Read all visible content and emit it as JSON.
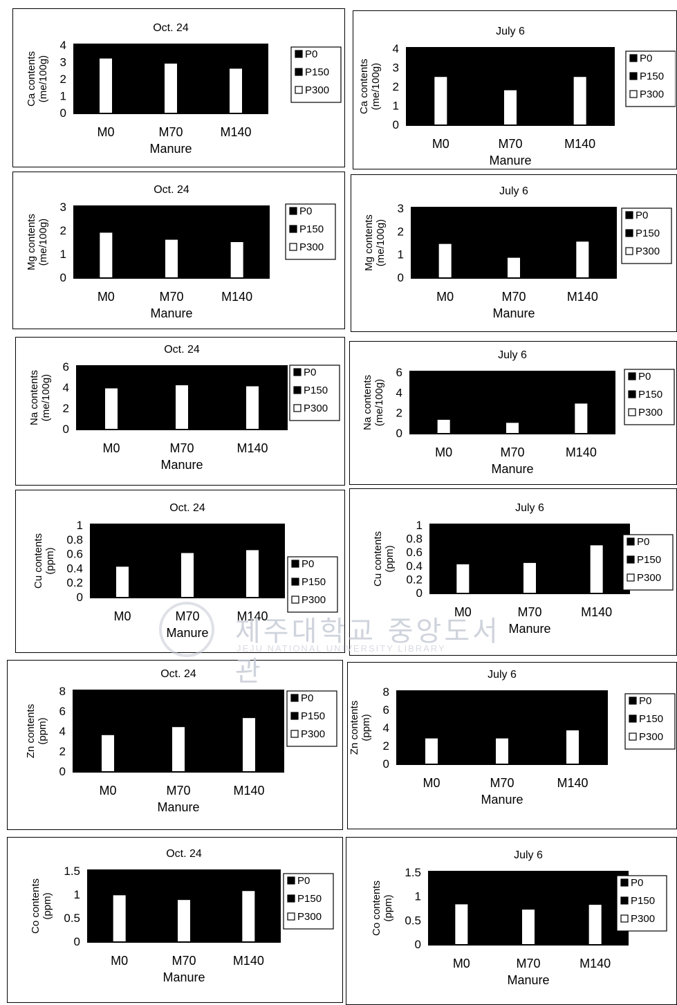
{
  "xlabel": "Manure",
  "categories": [
    "M0",
    "M70",
    "M140"
  ],
  "legend": [
    "P0",
    "P150",
    "P300"
  ],
  "colors": {
    "plot_bg": "#000000",
    "bar": "#ffffff",
    "text": "#000000"
  },
  "watermark": {
    "title": "제주대학교 중앙도서관",
    "subtitle": "JEJU NATIONAL UNIVERSITY LIBRARY"
  },
  "chart_data": [
    {
      "id": "ca-oct",
      "type": "bar",
      "title": "Oct. 24",
      "ylabel": [
        "Ca contents",
        "(me/100g)"
      ],
      "ylim": [
        0,
        4
      ],
      "yticks": [
        "0",
        "1",
        "2",
        "3",
        "4"
      ],
      "xlabel": "Manure",
      "categories": [
        "M0",
        "M70",
        "M140"
      ],
      "series": [
        {
          "name": "P300",
          "values": [
            3.2,
            2.9,
            2.6
          ]
        }
      ]
    },
    {
      "id": "ca-jul",
      "type": "bar",
      "title": "July 6",
      "ylabel": [
        "Ca contents",
        "(me/100g)"
      ],
      "ylim": [
        0,
        4
      ],
      "yticks": [
        "0",
        "1",
        "2",
        "3",
        "4"
      ],
      "xlabel": "Manure",
      "categories": [
        "M0",
        "M70",
        "M140"
      ],
      "series": [
        {
          "name": "P300",
          "values": [
            2.5,
            1.8,
            2.5
          ]
        }
      ]
    },
    {
      "id": "mg-oct",
      "type": "bar",
      "title": "Oct. 24",
      "ylabel": [
        "Mg contents",
        "(me/100g)"
      ],
      "ylim": [
        0,
        3
      ],
      "yticks": [
        "0",
        "1",
        "2",
        "3"
      ],
      "xlabel": "Manure",
      "categories": [
        "M0",
        "M70",
        "M140"
      ],
      "series": [
        {
          "name": "P300",
          "values": [
            1.9,
            1.6,
            1.5
          ]
        }
      ]
    },
    {
      "id": "mg-jul",
      "type": "bar",
      "title": "July 6",
      "ylabel": [
        "Mg contents",
        "(me/100g)"
      ],
      "ylim": [
        0,
        3
      ],
      "yticks": [
        "0",
        "1",
        "2",
        "3"
      ],
      "xlabel": "Manure",
      "categories": [
        "M0",
        "M70",
        "M140"
      ],
      "series": [
        {
          "name": "P300",
          "values": [
            1.45,
            0.85,
            1.55
          ]
        }
      ]
    },
    {
      "id": "na-oct",
      "type": "bar",
      "title": "Oct. 24",
      "ylabel": [
        "Na contents",
        "(me/100g)"
      ],
      "ylim": [
        0,
        6
      ],
      "yticks": [
        "0",
        "2",
        "4",
        "6"
      ],
      "xlabel": "Manure",
      "categories": [
        "M0",
        "M70",
        "M140"
      ],
      "series": [
        {
          "name": "P300",
          "values": [
            3.9,
            4.2,
            4.1
          ]
        }
      ]
    },
    {
      "id": "na-jul",
      "type": "bar",
      "title": "July 6",
      "ylabel": [
        "Na contents",
        "(me/100g)"
      ],
      "ylim": [
        0,
        6
      ],
      "yticks": [
        "0",
        "2",
        "4",
        "6"
      ],
      "xlabel": "Manure",
      "categories": [
        "M0",
        "M70",
        "M140"
      ],
      "series": [
        {
          "name": "P300",
          "values": [
            1.3,
            1.0,
            2.9
          ]
        }
      ]
    },
    {
      "id": "cu-oct",
      "type": "bar",
      "title": "Oct. 24",
      "ylabel": [
        "Cu contents",
        "(ppm)"
      ],
      "ylim": [
        0,
        1
      ],
      "yticks": [
        "0",
        "0.2",
        "0.4",
        "0.6",
        "0.8",
        "1"
      ],
      "xlabel": "Manure",
      "categories": [
        "M0",
        "M70",
        "M140"
      ],
      "series": [
        {
          "name": "P300",
          "values": [
            0.42,
            0.61,
            0.65
          ]
        }
      ]
    },
    {
      "id": "cu-jul",
      "type": "bar",
      "title": "July 6",
      "ylabel": [
        "Cu contents",
        "(ppm)"
      ],
      "ylim": [
        0,
        1
      ],
      "yticks": [
        "0",
        "0.2",
        "0.4",
        "0.6",
        "0.8",
        "1"
      ],
      "xlabel": "Manure",
      "categories": [
        "M0",
        "M70",
        "M140"
      ],
      "series": [
        {
          "name": "P300",
          "values": [
            0.42,
            0.44,
            0.7
          ]
        }
      ]
    },
    {
      "id": "zn-oct",
      "type": "bar",
      "title": "Oct. 24",
      "ylabel": [
        "Zn contents",
        "(ppm)"
      ],
      "ylim": [
        0,
        8
      ],
      "yticks": [
        "0",
        "2",
        "4",
        "6",
        "8"
      ],
      "xlabel": "Manure",
      "categories": [
        "M0",
        "M70",
        "M140"
      ],
      "series": [
        {
          "name": "P300",
          "values": [
            3.6,
            4.4,
            5.3
          ]
        }
      ]
    },
    {
      "id": "zn-jul",
      "type": "bar",
      "title": "July 6",
      "ylabel": [
        "Zn contents",
        "(ppm)"
      ],
      "ylim": [
        0,
        8
      ],
      "yticks": [
        "0",
        "2",
        "4",
        "6",
        "8"
      ],
      "xlabel": "Manure",
      "categories": [
        "M0",
        "M70",
        "M140"
      ],
      "series": [
        {
          "name": "P300",
          "values": [
            2.8,
            2.8,
            3.7
          ]
        }
      ]
    },
    {
      "id": "co-oct",
      "type": "bar",
      "title": "Oct. 24",
      "ylabel": [
        "Co contents",
        "(ppm)"
      ],
      "ylim": [
        0,
        1.5
      ],
      "yticks": [
        "0",
        "0.5",
        "1",
        "1.5"
      ],
      "xlabel": "Manure",
      "categories": [
        "M0",
        "M70",
        "M140"
      ],
      "series": [
        {
          "name": "P300",
          "values": [
            0.98,
            0.88,
            1.07
          ]
        }
      ]
    },
    {
      "id": "co-jul",
      "type": "bar",
      "title": "July 6",
      "ylabel": [
        "Co contents",
        "(ppm)"
      ],
      "ylim": [
        0,
        1.5
      ],
      "yticks": [
        "0",
        "0.5",
        "1",
        "1.5"
      ],
      "xlabel": "Manure",
      "categories": [
        "M0",
        "M70",
        "M140"
      ],
      "series": [
        {
          "name": "P300",
          "values": [
            0.83,
            0.72,
            0.82
          ]
        }
      ]
    }
  ]
}
